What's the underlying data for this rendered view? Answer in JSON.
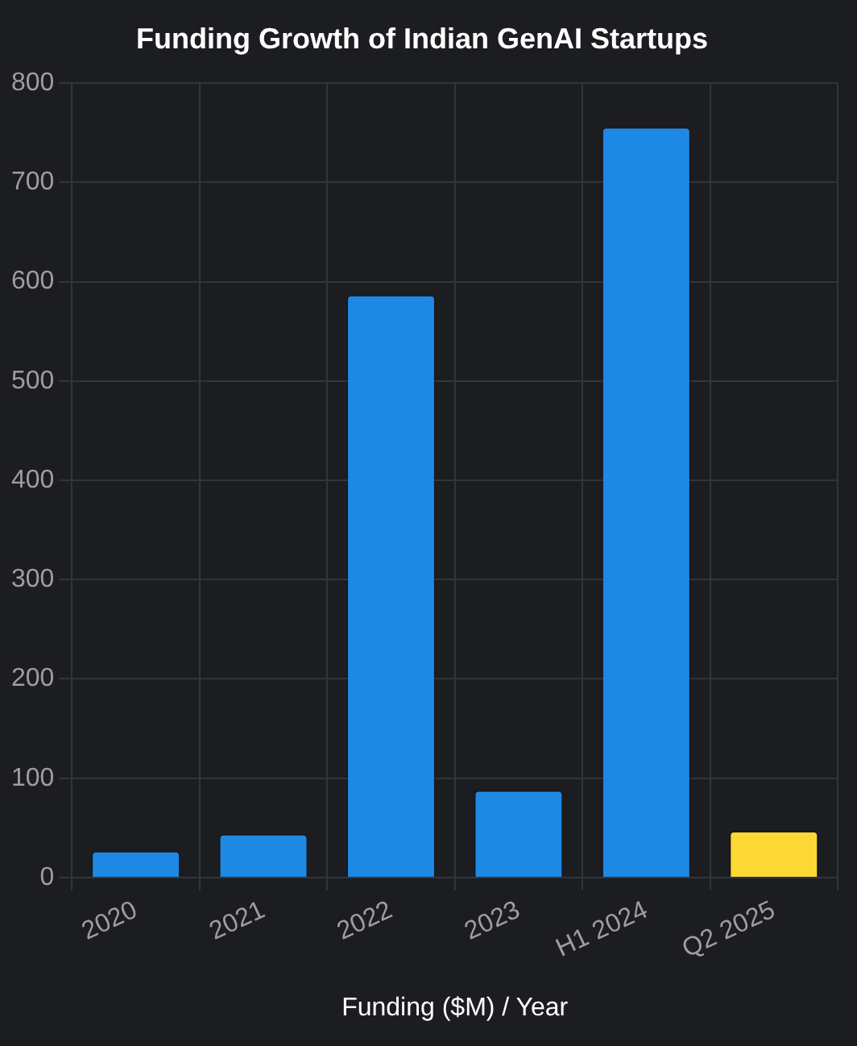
{
  "chart_data": {
    "type": "bar",
    "title": "Funding Growth of Indian GenAI Startups",
    "xlabel": "Funding ($M) / Year",
    "categories": [
      "2020",
      "2021",
      "2022",
      "2023",
      "H1 2024",
      "Q2 2025"
    ],
    "values": [
      27,
      44,
      587,
      88,
      756,
      47
    ],
    "colors": [
      "#1e88e5",
      "#1e88e5",
      "#1e88e5",
      "#1e88e5",
      "#1e88e5",
      "#fdd835"
    ],
    "ylim": [
      0,
      800
    ],
    "yticks": [
      0,
      100,
      200,
      300,
      400,
      500,
      600,
      700,
      800
    ],
    "grid": true,
    "legend": false
  }
}
